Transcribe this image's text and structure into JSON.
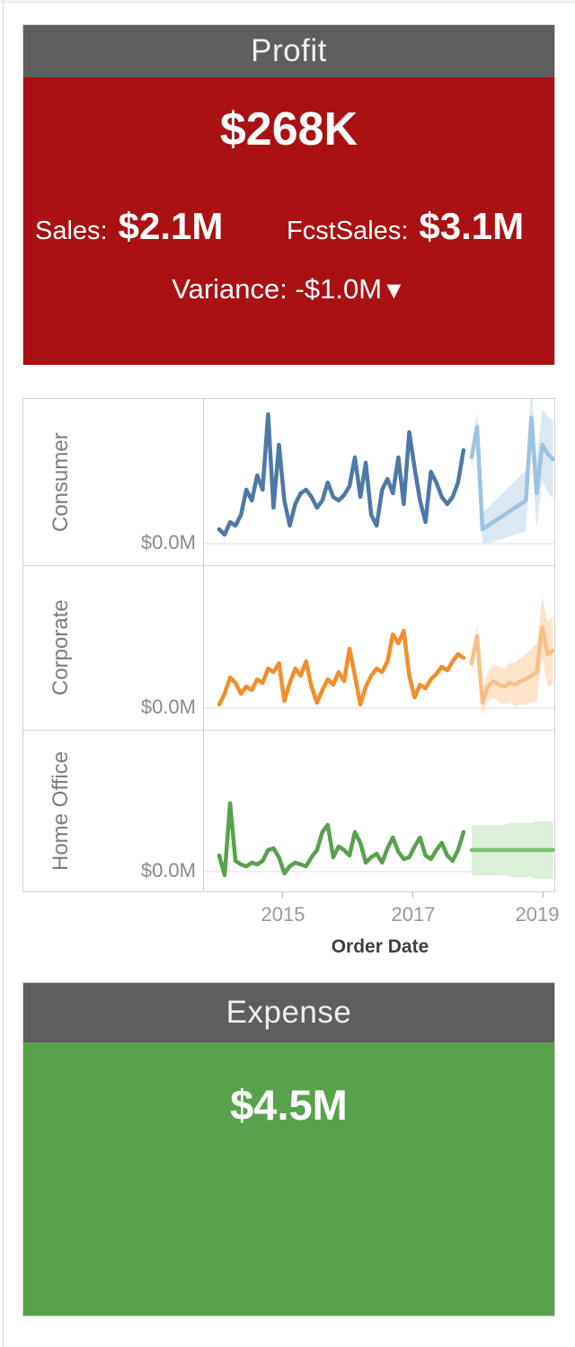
{
  "profit_card": {
    "title": "Profit",
    "value": "$268K",
    "sales_label": "Sales:",
    "sales_value": "$2.1M",
    "fcst_label": "FcstSales:",
    "fcst_value": "$3.1M",
    "variance_label": "Variance:",
    "variance_value": "-$1.0M",
    "variance_arrow": "▼",
    "header_bg": "#5e5e5e",
    "card_bg": "#a91114"
  },
  "expense_card": {
    "title": "Expense",
    "value": "$4.5M",
    "header_bg": "#5e5e5e",
    "card_bg": "#58a24c"
  },
  "chart_data": {
    "type": "line",
    "xlabel": "Order Date",
    "x_ticks": [
      "2015",
      "2017",
      "2019"
    ],
    "x_start": "2014-01",
    "x_interval": "month",
    "actual_months": 46,
    "forecast_months": 16,
    "y_axis_label": "$0.0M",
    "grid": "zero-line-only",
    "legend": "none",
    "rows": [
      {
        "label": "Consumer",
        "color": "#4e79a7",
        "forecast_color": "#9dc3e0",
        "band_color": "#dbe8f4",
        "actual": [
          8,
          5,
          12,
          10,
          16,
          30,
          24,
          38,
          30,
          72,
          20,
          55,
          24,
          10,
          22,
          28,
          30,
          26,
          20,
          24,
          34,
          26,
          24,
          27,
          32,
          48,
          26,
          45,
          16,
          10,
          30,
          36,
          28,
          48,
          22,
          62,
          42,
          24,
          12,
          40,
          34,
          26,
          22,
          26,
          34,
          52
        ],
        "forecast": [
          48,
          65,
          8,
          10,
          12,
          14,
          16,
          18,
          20,
          22,
          24,
          70,
          28,
          55,
          50,
          47
        ],
        "band_halfwidth": [
          6,
          8,
          9,
          10,
          11,
          12,
          13,
          14,
          15,
          16,
          17,
          18,
          19,
          20,
          21,
          22
        ]
      },
      {
        "label": "Corporate",
        "color": "#f28e2b",
        "forecast_color": "#f7c08a",
        "band_color": "#fce4cb",
        "actual": [
          2,
          8,
          17,
          14,
          8,
          12,
          10,
          16,
          14,
          22,
          20,
          25,
          4,
          14,
          22,
          18,
          26,
          12,
          3,
          10,
          16,
          13,
          20,
          15,
          33,
          18,
          2,
          12,
          18,
          22,
          20,
          26,
          41,
          36,
          43,
          18,
          6,
          13,
          11,
          16,
          19,
          23,
          21,
          26,
          30,
          28
        ],
        "forecast": [
          25,
          40,
          3,
          12,
          15,
          13,
          12,
          14,
          13,
          15,
          16,
          18,
          20,
          45,
          30,
          32
        ],
        "band_halfwidth": [
          5,
          6,
          7,
          8,
          9,
          10,
          10,
          11,
          12,
          13,
          14,
          15,
          16,
          17,
          18,
          19
        ]
      },
      {
        "label": "Home Office",
        "color": "#59a14f",
        "forecast_color": "#7cc274",
        "band_color": "#dcefd8",
        "actual": [
          9,
          -2,
          38,
          6,
          4,
          3,
          5,
          4,
          6,
          12,
          13,
          8,
          -1,
          3,
          5,
          4,
          3,
          8,
          12,
          22,
          26,
          8,
          14,
          12,
          9,
          22,
          16,
          5,
          8,
          10,
          5,
          13,
          19,
          11,
          7,
          8,
          14,
          19,
          9,
          7,
          12,
          16,
          9,
          6,
          12,
          22
        ],
        "forecast": [
          12,
          12,
          12,
          12,
          12,
          12,
          12,
          12,
          12,
          12,
          12,
          12,
          12,
          12,
          12,
          12
        ],
        "band_halfwidth": [
          14,
          14,
          14,
          14,
          14,
          14,
          14,
          15,
          15,
          15,
          15,
          15,
          16,
          16,
          16,
          16
        ]
      }
    ]
  }
}
